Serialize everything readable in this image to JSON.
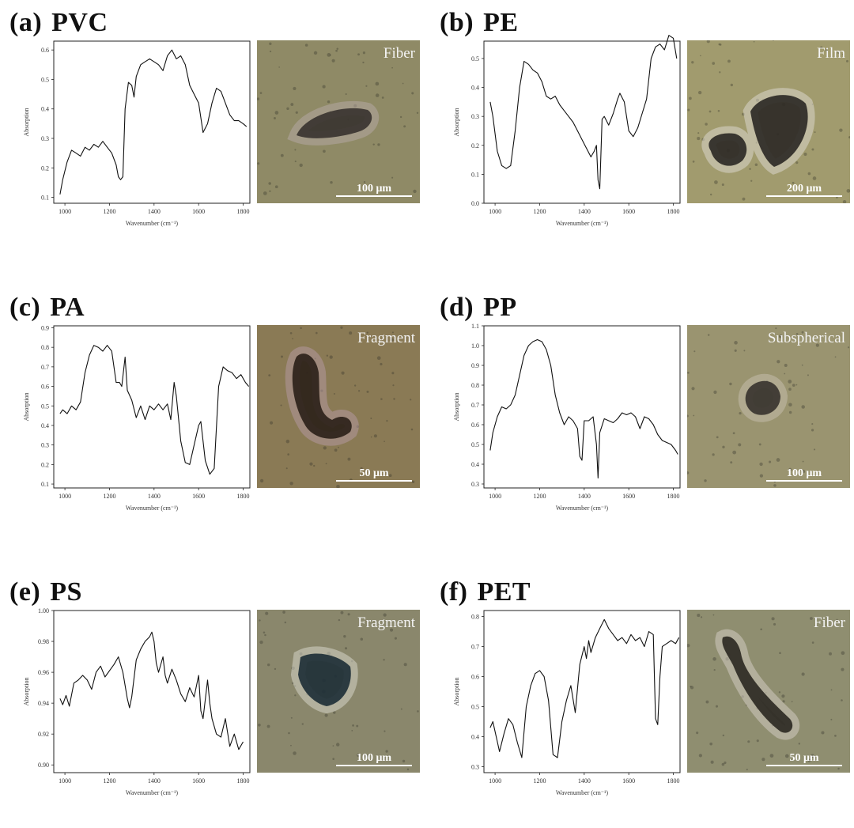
{
  "panels": [
    {
      "tag": "(a)",
      "polymer": "PVC",
      "morphology": "Fiber",
      "scale": "100 μm",
      "micro_colors": {
        "bg": "#8f8a66",
        "particle": "#3a3430",
        "halo": "#b8a9a8"
      }
    },
    {
      "tag": "(b)",
      "polymer": "PE",
      "morphology": "Film",
      "scale": "200 μm",
      "micro_colors": {
        "bg": "#a19b6e",
        "particle": "#2e2a26",
        "halo": "#e0dcd4"
      }
    },
    {
      "tag": "(c)",
      "polymer": "PA",
      "morphology": "Fragment",
      "scale": "50 μm",
      "micro_colors": {
        "bg": "#8a7a55",
        "particle": "#2c221a",
        "halo": "#b59aa6"
      }
    },
    {
      "tag": "(d)",
      "polymer": "PP",
      "morphology": "Subspherical",
      "scale": "100 μm",
      "micro_colors": {
        "bg": "#9a9470",
        "particle": "#3a3530",
        "halo": "#c7bfb0"
      }
    },
    {
      "tag": "(e)",
      "polymer": "PS",
      "morphology": "Fragment",
      "scale": "100 μm",
      "micro_colors": {
        "bg": "#8a876c",
        "particle": "#203038",
        "halo": "#dcdcd0"
      }
    },
    {
      "tag": "(f)",
      "polymer": "PET",
      "morphology": "Fiber",
      "scale": "50 μm",
      "micro_colors": {
        "bg": "#8f8e70",
        "particle": "#2e2a24",
        "halo": "#d8d0c8"
      }
    }
  ],
  "chart_data": [
    {
      "type": "line",
      "xlabel": "Wavenumber (cm⁻¹)",
      "ylabel": "Absorption",
      "xlim": [
        950,
        1830
      ],
      "ylim": [
        0.08,
        0.63
      ],
      "xticks": [
        1000,
        1200,
        1400,
        1600,
        1800
      ],
      "xtick_labels": [
        "1000",
        "1200",
        "1400",
        "1600",
        "1800"
      ],
      "yticks": [
        0.1,
        0.2,
        0.3,
        0.4,
        0.5,
        0.6
      ],
      "ytick_labels": [
        "0.1",
        "0.2",
        "0.3",
        "0.4",
        "0.5",
        "0.6"
      ],
      "x": [
        978,
        990,
        1010,
        1030,
        1050,
        1070,
        1090,
        1110,
        1130,
        1150,
        1170,
        1190,
        1210,
        1230,
        1240,
        1250,
        1260,
        1270,
        1285,
        1300,
        1310,
        1320,
        1340,
        1360,
        1380,
        1400,
        1420,
        1440,
        1460,
        1480,
        1500,
        1520,
        1540,
        1560,
        1580,
        1600,
        1620,
        1640,
        1660,
        1680,
        1700,
        1720,
        1740,
        1760,
        1780,
        1800,
        1815
      ],
      "y": [
        0.11,
        0.16,
        0.22,
        0.26,
        0.25,
        0.24,
        0.27,
        0.26,
        0.28,
        0.27,
        0.29,
        0.27,
        0.25,
        0.21,
        0.17,
        0.16,
        0.17,
        0.4,
        0.49,
        0.48,
        0.44,
        0.51,
        0.55,
        0.56,
        0.57,
        0.56,
        0.55,
        0.53,
        0.58,
        0.6,
        0.57,
        0.58,
        0.55,
        0.48,
        0.45,
        0.42,
        0.32,
        0.35,
        0.42,
        0.47,
        0.46,
        0.42,
        0.38,
        0.36,
        0.36,
        0.35,
        0.34
      ]
    },
    {
      "type": "line",
      "xlabel": "Wavenumber (cm⁻¹)",
      "ylabel": "Absorption",
      "xlim": [
        950,
        1830
      ],
      "ylim": [
        0.0,
        0.56
      ],
      "xticks": [
        1000,
        1200,
        1400,
        1600,
        1800
      ],
      "xtick_labels": [
        "1000",
        "1200",
        "1400",
        "1600",
        "1800"
      ],
      "yticks": [
        0.0,
        0.1,
        0.2,
        0.3,
        0.4,
        0.5
      ],
      "ytick_labels": [
        "0.0",
        "0.1",
        "0.2",
        "0.3",
        "0.4",
        "0.5"
      ],
      "x": [
        978,
        990,
        1010,
        1030,
        1050,
        1070,
        1090,
        1110,
        1130,
        1150,
        1170,
        1190,
        1210,
        1230,
        1250,
        1270,
        1290,
        1310,
        1330,
        1350,
        1370,
        1390,
        1410,
        1430,
        1445,
        1455,
        1462,
        1470,
        1480,
        1490,
        1510,
        1530,
        1550,
        1560,
        1580,
        1600,
        1620,
        1640,
        1660,
        1680,
        1700,
        1720,
        1740,
        1760,
        1780,
        1800,
        1815
      ],
      "y": [
        0.35,
        0.3,
        0.18,
        0.13,
        0.12,
        0.13,
        0.25,
        0.4,
        0.49,
        0.48,
        0.46,
        0.45,
        0.42,
        0.37,
        0.36,
        0.37,
        0.34,
        0.32,
        0.3,
        0.28,
        0.25,
        0.22,
        0.19,
        0.16,
        0.18,
        0.2,
        0.08,
        0.05,
        0.29,
        0.3,
        0.27,
        0.31,
        0.36,
        0.38,
        0.35,
        0.25,
        0.23,
        0.26,
        0.31,
        0.36,
        0.5,
        0.54,
        0.55,
        0.53,
        0.58,
        0.57,
        0.5
      ]
    },
    {
      "type": "line",
      "xlabel": "Wavenumber (cm⁻¹)",
      "ylabel": "Absorption",
      "xlim": [
        950,
        1830
      ],
      "ylim": [
        0.08,
        0.91
      ],
      "xticks": [
        1000,
        1200,
        1400,
        1600,
        1800
      ],
      "xtick_labels": [
        "1000",
        "1200",
        "1400",
        "1600",
        "1800"
      ],
      "yticks": [
        0.1,
        0.2,
        0.3,
        0.4,
        0.5,
        0.6,
        0.7,
        0.8,
        0.9
      ],
      "ytick_labels": [
        "0.1",
        "0.2",
        "0.3",
        "0.4",
        "0.5",
        "0.6",
        "0.7",
        "0.8",
        "0.9"
      ],
      "x": [
        978,
        990,
        1010,
        1030,
        1050,
        1070,
        1090,
        1110,
        1130,
        1150,
        1170,
        1190,
        1210,
        1230,
        1245,
        1255,
        1270,
        1280,
        1300,
        1320,
        1340,
        1360,
        1380,
        1400,
        1420,
        1440,
        1460,
        1475,
        1490,
        1500,
        1520,
        1540,
        1560,
        1580,
        1600,
        1610,
        1630,
        1650,
        1670,
        1690,
        1710,
        1730,
        1750,
        1770,
        1790,
        1810,
        1825
      ],
      "y": [
        0.46,
        0.48,
        0.46,
        0.5,
        0.48,
        0.52,
        0.67,
        0.76,
        0.81,
        0.8,
        0.78,
        0.81,
        0.78,
        0.62,
        0.62,
        0.6,
        0.75,
        0.58,
        0.53,
        0.44,
        0.5,
        0.43,
        0.5,
        0.48,
        0.51,
        0.48,
        0.51,
        0.43,
        0.62,
        0.55,
        0.32,
        0.21,
        0.2,
        0.3,
        0.4,
        0.42,
        0.22,
        0.15,
        0.18,
        0.6,
        0.7,
        0.68,
        0.67,
        0.64,
        0.66,
        0.62,
        0.6
      ]
    },
    {
      "type": "line",
      "xlabel": "Wavenumber (cm⁻¹)",
      "ylabel": "Absorption",
      "xlim": [
        950,
        1830
      ],
      "ylim": [
        0.28,
        1.1
      ],
      "xticks": [
        1000,
        1200,
        1400,
        1600,
        1800
      ],
      "xtick_labels": [
        "1000",
        "1200",
        "1400",
        "1600",
        "1800"
      ],
      "yticks": [
        0.3,
        0.4,
        0.5,
        0.6,
        0.7,
        0.8,
        0.9,
        1.0,
        1.1
      ],
      "ytick_labels": [
        "0.3",
        "0.4",
        "0.5",
        "0.6",
        "0.7",
        "0.8",
        "0.9",
        "1.0",
        "1.1"
      ],
      "x": [
        978,
        990,
        1010,
        1030,
        1050,
        1070,
        1090,
        1110,
        1130,
        1150,
        1170,
        1190,
        1210,
        1230,
        1250,
        1270,
        1290,
        1310,
        1330,
        1350,
        1370,
        1380,
        1390,
        1400,
        1420,
        1440,
        1455,
        1462,
        1470,
        1490,
        1510,
        1530,
        1550,
        1570,
        1590,
        1610,
        1630,
        1650,
        1670,
        1690,
        1710,
        1730,
        1750,
        1770,
        1790,
        1810,
        1820
      ],
      "y": [
        0.47,
        0.56,
        0.64,
        0.69,
        0.68,
        0.7,
        0.75,
        0.85,
        0.95,
        1.0,
        1.02,
        1.03,
        1.02,
        0.98,
        0.9,
        0.75,
        0.66,
        0.6,
        0.64,
        0.62,
        0.58,
        0.44,
        0.42,
        0.62,
        0.62,
        0.64,
        0.5,
        0.33,
        0.56,
        0.63,
        0.62,
        0.61,
        0.63,
        0.66,
        0.65,
        0.66,
        0.64,
        0.58,
        0.64,
        0.63,
        0.6,
        0.55,
        0.52,
        0.51,
        0.5,
        0.47,
        0.45
      ]
    },
    {
      "type": "line",
      "xlabel": "Wavenumber (cm⁻¹)",
      "ylabel": "Absorption",
      "xlim": [
        950,
        1830
      ],
      "ylim": [
        0.895,
        1.0
      ],
      "xticks": [
        1000,
        1200,
        1400,
        1600,
        1800
      ],
      "xtick_labels": [
        "1000",
        "1200",
        "1400",
        "1600",
        "1800"
      ],
      "yticks": [
        0.9,
        0.92,
        0.94,
        0.96,
        0.98,
        1.0
      ],
      "ytick_labels": [
        "0.90",
        "0.92",
        "0.94",
        "0.96",
        "0.98",
        "1.00"
      ],
      "x": [
        978,
        990,
        1005,
        1020,
        1040,
        1060,
        1080,
        1100,
        1120,
        1140,
        1160,
        1180,
        1200,
        1220,
        1240,
        1260,
        1280,
        1290,
        1300,
        1320,
        1340,
        1360,
        1380,
        1390,
        1400,
        1410,
        1420,
        1440,
        1450,
        1460,
        1480,
        1500,
        1520,
        1540,
        1560,
        1580,
        1600,
        1610,
        1620,
        1640,
        1650,
        1660,
        1680,
        1700,
        1720,
        1740,
        1760,
        1780,
        1800
      ],
      "y": [
        0.943,
        0.939,
        0.945,
        0.938,
        0.953,
        0.955,
        0.958,
        0.955,
        0.949,
        0.96,
        0.964,
        0.957,
        0.961,
        0.965,
        0.97,
        0.96,
        0.943,
        0.937,
        0.944,
        0.968,
        0.975,
        0.98,
        0.983,
        0.986,
        0.98,
        0.966,
        0.96,
        0.97,
        0.958,
        0.953,
        0.962,
        0.955,
        0.946,
        0.941,
        0.95,
        0.944,
        0.958,
        0.935,
        0.93,
        0.955,
        0.94,
        0.93,
        0.92,
        0.918,
        0.93,
        0.912,
        0.92,
        0.91,
        0.915
      ]
    },
    {
      "type": "line",
      "xlabel": "Wavenumber (cm⁻¹)",
      "ylabel": "Absorption",
      "xlim": [
        950,
        1830
      ],
      "ylim": [
        0.28,
        0.82
      ],
      "xticks": [
        1000,
        1200,
        1400,
        1600,
        1800
      ],
      "xtick_labels": [
        "1000",
        "1200",
        "1400",
        "1600",
        "1800"
      ],
      "yticks": [
        0.3,
        0.4,
        0.5,
        0.6,
        0.7,
        0.8
      ],
      "ytick_labels": [
        "0.3",
        "0.4",
        "0.5",
        "0.6",
        "0.7",
        "0.8"
      ],
      "x": [
        978,
        990,
        1005,
        1020,
        1040,
        1060,
        1080,
        1100,
        1120,
        1140,
        1160,
        1180,
        1200,
        1220,
        1240,
        1260,
        1280,
        1300,
        1320,
        1340,
        1360,
        1380,
        1400,
        1410,
        1420,
        1430,
        1450,
        1470,
        1490,
        1510,
        1530,
        1550,
        1570,
        1590,
        1610,
        1630,
        1650,
        1670,
        1690,
        1710,
        1720,
        1730,
        1740,
        1750,
        1770,
        1790,
        1810,
        1825
      ],
      "y": [
        0.43,
        0.45,
        0.4,
        0.35,
        0.41,
        0.46,
        0.44,
        0.38,
        0.33,
        0.5,
        0.57,
        0.61,
        0.62,
        0.6,
        0.52,
        0.34,
        0.33,
        0.45,
        0.52,
        0.57,
        0.48,
        0.64,
        0.7,
        0.66,
        0.72,
        0.68,
        0.73,
        0.76,
        0.79,
        0.76,
        0.74,
        0.72,
        0.73,
        0.71,
        0.74,
        0.72,
        0.73,
        0.7,
        0.75,
        0.74,
        0.46,
        0.44,
        0.6,
        0.7,
        0.71,
        0.72,
        0.71,
        0.73
      ]
    }
  ]
}
